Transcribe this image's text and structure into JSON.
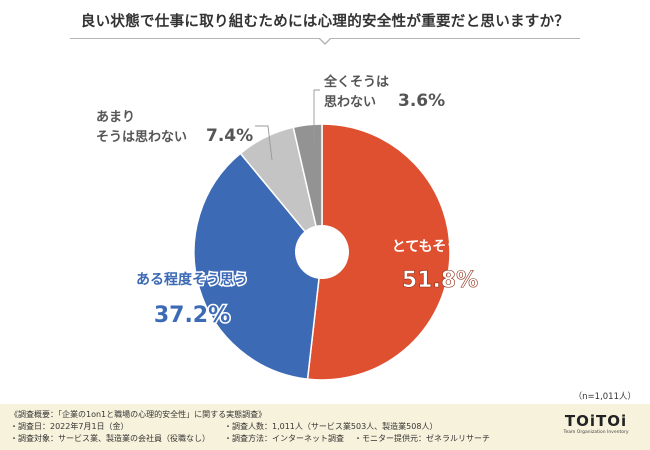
{
  "title": "良い状態で仕事に取り組むためには心理的安全性が重要だと思いますか？",
  "n_note": "（n=1,011人）",
  "footer": {
    "line1": "《調査概要：「企業の1on1と職場の心理的安全性」に関する実態調査》",
    "date": "・調査日：2022年7月1日（金）",
    "respondents": "・調査人数：1,011人（サービス業503人、製造業508人）",
    "target": "・調査対象：サービス業、製造業の会社員（役職なし）",
    "method": "・調査方法：インターネット調査",
    "provider": "・モニター提供元：ゼネラルリサーチ"
  },
  "logo": {
    "main": "TOiTOi",
    "sub": "Team Organization Inventory"
  },
  "chart_data": {
    "type": "pie",
    "unit": "%",
    "slices": [
      {
        "label": "とてもそう思う",
        "value": 51.8,
        "value_text": "51.8%",
        "color": "#de5030"
      },
      {
        "label": "ある程度そう思う",
        "value": 37.2,
        "value_text": "37.2%",
        "color": "#3c6ab5"
      },
      {
        "label_lines": [
          "あまり",
          "そうは思わない"
        ],
        "value": 7.4,
        "value_text": "7.4%",
        "color": "#c4c4c4"
      },
      {
        "label_lines": [
          "全くそうは",
          "思わない"
        ],
        "value": 3.6,
        "value_text": "3.6%",
        "color": "#939393"
      }
    ]
  }
}
